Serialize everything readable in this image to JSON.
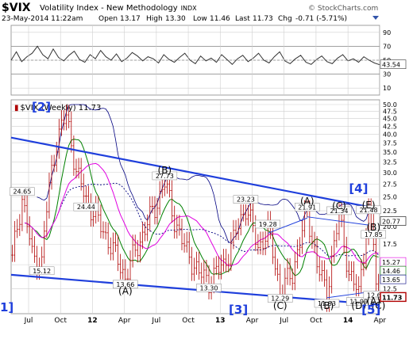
{
  "header": {
    "symbol": "$VIX",
    "name": "Volatility Index - New Methodology",
    "exchange": "INDX",
    "watermark": "© StockCharts.com",
    "date_line": "23-May-2014 11:22am",
    "open_label": "Open",
    "open": "13.17",
    "high_label": "High",
    "high": "13.30",
    "low_label": "Low",
    "low": "11.46",
    "last_label": "Last",
    "last": "11.73",
    "chg_label": "Chg",
    "chg": "-0.71 (-5.71%)"
  },
  "colors": {
    "price_bars": "#b00000",
    "ma_dotted": "#000080",
    "bb_upper": "#000080",
    "ma_green": "#008000",
    "ma_magenta": "#e000e0",
    "trend_lines": "#1f3fdc",
    "wave_labels": "#1f3fdc",
    "rsi_line": "#333333"
  },
  "chart_data": [
    {
      "type": "line",
      "panel": "RSI",
      "yticks": [
        10,
        30,
        50,
        70,
        90
      ],
      "ylim": [
        0,
        100
      ],
      "reference_levels": [
        30,
        50,
        70
      ],
      "last_value": "43.54",
      "values": [
        50,
        62,
        48,
        55,
        60,
        70,
        58,
        52,
        66,
        54,
        49,
        57,
        63,
        51,
        47,
        58,
        52,
        64,
        55,
        50,
        59,
        48,
        53,
        61,
        56,
        49,
        55,
        52,
        46,
        58,
        51,
        47,
        54,
        60,
        50,
        45,
        56,
        49,
        53,
        47,
        58,
        51,
        44,
        52,
        57,
        48,
        53,
        60,
        50,
        46,
        55,
        62,
        49,
        45,
        52,
        57,
        47,
        44,
        51,
        56,
        48,
        45,
        53,
        58,
        49,
        52,
        47,
        55,
        50,
        46,
        43.54
      ]
    },
    {
      "type": "candlestick",
      "panel": "Price",
      "series_label": "$VIX (Weekly) 11.73",
      "log_scale": true,
      "ylim": [
        10.5,
        50
      ],
      "yticks": [
        "50.0",
        "47.5",
        "45.0",
        "42.5",
        "40.0",
        "37.5",
        "35.0",
        "32.5",
        "30.0",
        "27.5",
        "25.0",
        "22.5",
        "20.0",
        "17.5",
        "15.0",
        "12.5",
        "10.0"
      ],
      "xticks": [
        "Jul",
        "Oct",
        "12",
        "Apr",
        "Jul",
        "Oct",
        "13",
        "Apr",
        "Jul",
        "Oct",
        "14",
        "Apr"
      ],
      "price_labels": [
        {
          "text": "24.65",
          "v": 24.65
        },
        {
          "text": "15.12",
          "v": 15.12
        },
        {
          "text": "24.44",
          "v": 24.44
        },
        {
          "text": "13.66",
          "v": 13.66
        },
        {
          "text": "27.73",
          "v": 27.73
        },
        {
          "text": "13.30",
          "v": 13.3
        },
        {
          "text": "23.23",
          "v": 23.23
        },
        {
          "text": "19.28",
          "v": 19.28
        },
        {
          "text": "12.29",
          "v": 12.29
        },
        {
          "text": "21.91",
          "v": 21.91
        },
        {
          "text": "11.83",
          "v": 11.83
        },
        {
          "text": "21.34",
          "v": 21.34
        },
        {
          "text": "11.99",
          "v": 11.99
        },
        {
          "text": "21.48",
          "v": 21.48
        },
        {
          "text": "17.85",
          "v": 17.85
        },
        {
          "text": "12.60",
          "v": 12.6
        }
      ],
      "right_badges": [
        {
          "text": "20.77",
          "v": 20.77
        },
        {
          "text": "15.27",
          "v": 15.27
        },
        {
          "text": "14.46",
          "v": 14.46
        },
        {
          "text": "13.65",
          "v": 13.65
        },
        {
          "text": "11.73",
          "v": 11.73
        }
      ],
      "wave_labels_black": [
        "(B)",
        "(A)",
        "(A)",
        "(C)",
        "(B)",
        "(C)",
        "(E)",
        "(B)",
        "(D)",
        "(A)",
        "(C)"
      ],
      "wave_labels_blue": [
        "[2]",
        "[4]",
        "1]",
        "[3]",
        "[5]"
      ]
    }
  ]
}
